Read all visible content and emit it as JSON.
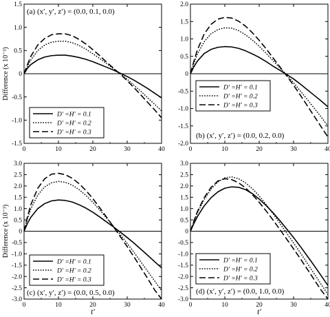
{
  "chart_data": [
    {
      "type": "line",
      "title": "(a) (x′, y′, z′) = (0.0, 0.1, 0.0)",
      "title_position": "top-left",
      "xlabel": "",
      "ylabel": "Difference (x 10⁻³)",
      "xlim": [
        0,
        40
      ],
      "ylim": [
        -1.5,
        1.5
      ],
      "xticks": [
        "0",
        "10",
        "20",
        "30",
        "40"
      ],
      "yticks": [
        "-1.5",
        "-1.0",
        "-0.5",
        "0",
        "0.5",
        "1.0",
        "1.5"
      ],
      "yticks_values": [
        -1.5,
        -1.0,
        -0.5,
        0,
        0.5,
        1.0,
        1.5
      ],
      "grid": false,
      "zero_line": true,
      "legend_position": "bottom-left",
      "series": [
        {
          "name": "D′ =H′ = 0.1",
          "style": "solid",
          "x": [
            0,
            1,
            2,
            4,
            6,
            8,
            10,
            12,
            14,
            16,
            18,
            20,
            22,
            24,
            26,
            28,
            30,
            32,
            34,
            36,
            38,
            40
          ],
          "y": [
            0,
            0.12,
            0.2,
            0.3,
            0.36,
            0.39,
            0.4,
            0.4,
            0.38,
            0.35,
            0.31,
            0.26,
            0.2,
            0.14,
            0.08,
            0.01,
            -0.06,
            -0.14,
            -0.23,
            -0.32,
            -0.42,
            -0.52
          ]
        },
        {
          "name": "D′ =H′ = 0.2",
          "style": "dotted",
          "x": [
            0,
            1,
            2,
            4,
            6,
            8,
            10,
            12,
            14,
            16,
            18,
            20,
            22,
            24,
            26,
            28,
            30,
            32,
            34,
            36,
            38,
            40
          ],
          "y": [
            0,
            0.16,
            0.3,
            0.5,
            0.62,
            0.68,
            0.7,
            0.7,
            0.67,
            0.61,
            0.53,
            0.43,
            0.33,
            0.22,
            0.11,
            0.0,
            -0.12,
            -0.25,
            -0.38,
            -0.52,
            -0.66,
            -0.8
          ]
        },
        {
          "name": "D′ =H′ = 0.3",
          "style": "dashed",
          "x": [
            0,
            1,
            2,
            4,
            6,
            8,
            10,
            12,
            14,
            16,
            18,
            20,
            22,
            24,
            26,
            28,
            30,
            32,
            34,
            36,
            38,
            40
          ],
          "y": [
            0,
            0.2,
            0.38,
            0.62,
            0.76,
            0.84,
            0.86,
            0.86,
            0.82,
            0.74,
            0.64,
            0.52,
            0.39,
            0.25,
            0.12,
            -0.01,
            -0.15,
            -0.3,
            -0.46,
            -0.62,
            -0.78,
            -0.95
          ]
        }
      ]
    },
    {
      "type": "line",
      "title": "(b) (x′, y′, z′) = (0.0, 0.2, 0.0)",
      "title_position": "bottom-right",
      "xlabel": "",
      "ylabel": "",
      "xlim": [
        0,
        40
      ],
      "ylim": [
        -2.0,
        2.0
      ],
      "xticks": [
        "0",
        "10",
        "20",
        "30",
        "40"
      ],
      "yticks": [
        "-2.0",
        "-1.5",
        "-1.0",
        "-0.5",
        "0",
        "0.5",
        "1.0",
        "1.5",
        "2.0"
      ],
      "yticks_values": [
        -2.0,
        -1.5,
        -1.0,
        -0.5,
        0,
        0.5,
        1.0,
        1.5,
        2.0
      ],
      "grid": false,
      "zero_line": true,
      "legend_position": "center-left",
      "series": [
        {
          "name": "D′ =H′ = 0.1",
          "style": "solid",
          "x": [
            0,
            1,
            2,
            4,
            6,
            8,
            10,
            12,
            14,
            16,
            18,
            20,
            22,
            24,
            26,
            28,
            30,
            32,
            34,
            36,
            38,
            40
          ],
          "y": [
            0,
            0.2,
            0.36,
            0.58,
            0.7,
            0.76,
            0.78,
            0.77,
            0.73,
            0.66,
            0.57,
            0.47,
            0.35,
            0.22,
            0.1,
            -0.02,
            -0.15,
            -0.3,
            -0.46,
            -0.62,
            -0.78,
            -0.95
          ]
        },
        {
          "name": "D′ =H′ = 0.2",
          "style": "dotted",
          "x": [
            0,
            1,
            2,
            4,
            6,
            8,
            10,
            12,
            14,
            16,
            18,
            20,
            22,
            24,
            26,
            28,
            30,
            32,
            34,
            36,
            38,
            40
          ],
          "y": [
            0,
            0.3,
            0.56,
            0.92,
            1.15,
            1.27,
            1.32,
            1.31,
            1.24,
            1.12,
            0.97,
            0.79,
            0.59,
            0.38,
            0.17,
            -0.04,
            -0.26,
            -0.5,
            -0.74,
            -0.99,
            -1.24,
            -1.5
          ]
        },
        {
          "name": "D′ =H′ = 0.3",
          "style": "dashed",
          "x": [
            0,
            1,
            2,
            4,
            6,
            8,
            10,
            12,
            14,
            16,
            18,
            20,
            22,
            24,
            26,
            28,
            30,
            32,
            34,
            36,
            38,
            40
          ],
          "y": [
            0,
            0.36,
            0.68,
            1.14,
            1.42,
            1.57,
            1.62,
            1.6,
            1.51,
            1.37,
            1.18,
            0.96,
            0.72,
            0.46,
            0.2,
            -0.06,
            -0.33,
            -0.62,
            -0.92,
            -1.22,
            -1.52,
            -1.82
          ]
        }
      ]
    },
    {
      "type": "line",
      "title": "(c) (x′, y′, z′) = (0.0, 0.5, 0.0)",
      "title_position": "bottom-left",
      "xlabel": "t′",
      "ylabel": "Difference (x 10⁻³)",
      "xlim": [
        0,
        40
      ],
      "ylim": [
        -3.0,
        3.0
      ],
      "xticks": [
        "0",
        "10",
        "20",
        "30",
        "40"
      ],
      "yticks": [
        "-3.0",
        "-2.5",
        "-2.0",
        "-1.5",
        "-1.0",
        "-0.5",
        "0",
        "0.5",
        "1.0",
        "1.5",
        "2.0",
        "2.5",
        "3.0"
      ],
      "yticks_values": [
        -3.0,
        -2.5,
        -2.0,
        -1.5,
        -1.0,
        -0.5,
        0,
        0.5,
        1.0,
        1.5,
        2.0,
        2.5,
        3.0
      ],
      "grid": false,
      "zero_line": true,
      "legend_position": "bottom-left",
      "series": [
        {
          "name": "D′ =H′ = 0.1",
          "style": "solid",
          "x": [
            0,
            1,
            2,
            4,
            6,
            8,
            10,
            12,
            14,
            16,
            18,
            20,
            22,
            24,
            26,
            28,
            30,
            32,
            34,
            36,
            38,
            40
          ],
          "y": [
            0,
            0.35,
            0.62,
            1.0,
            1.22,
            1.34,
            1.38,
            1.36,
            1.29,
            1.17,
            1.02,
            0.84,
            0.63,
            0.41,
            0.19,
            -0.04,
            -0.28,
            -0.53,
            -0.8,
            -1.07,
            -1.35,
            -1.62
          ]
        },
        {
          "name": "D′ =H′ = 0.2",
          "style": "dotted",
          "x": [
            0,
            1,
            2,
            4,
            6,
            8,
            10,
            12,
            14,
            16,
            18,
            20,
            22,
            24,
            26,
            28,
            30,
            32,
            34,
            36,
            38,
            40
          ],
          "y": [
            0,
            0.55,
            1.0,
            1.6,
            1.96,
            2.14,
            2.2,
            2.16,
            2.04,
            1.84,
            1.58,
            1.28,
            0.94,
            0.58,
            0.22,
            -0.15,
            -0.54,
            -0.94,
            -1.36,
            -1.78,
            -2.2,
            -2.62
          ]
        },
        {
          "name": "D′ =H′ = 0.3",
          "style": "dashed",
          "x": [
            0,
            1,
            2,
            4,
            6,
            8,
            10,
            12,
            14,
            16,
            18,
            20,
            22,
            24,
            26,
            28,
            30,
            32,
            34,
            36,
            38,
            40
          ],
          "y": [
            0,
            0.65,
            1.18,
            1.9,
            2.32,
            2.52,
            2.56,
            2.5,
            2.34,
            2.1,
            1.8,
            1.44,
            1.04,
            0.62,
            0.2,
            -0.24,
            -0.68,
            -1.14,
            -1.62,
            -2.1,
            -2.6,
            -3.0
          ]
        }
      ]
    },
    {
      "type": "line",
      "title": "(d) (x′, y′, z′) = (0.0, 1.0, 0.0)",
      "title_position": "bottom-right",
      "xlabel": "t′",
      "ylabel": "",
      "xlim": [
        0,
        40
      ],
      "ylim": [
        -3.0,
        3.0
      ],
      "xticks": [
        "0",
        "10",
        "20",
        "30",
        "40"
      ],
      "yticks": [
        "-3.0",
        "-2.5",
        "-2.0",
        "-1.5",
        "-1.0",
        "-0.5",
        "0",
        "0.5",
        "1.0",
        "1.5",
        "2.0",
        "2.5",
        "3.0"
      ],
      "yticks_values": [
        -3.0,
        -2.5,
        -2.0,
        -1.5,
        -1.0,
        -0.5,
        0,
        0.5,
        1.0,
        1.5,
        2.0,
        2.5,
        3.0
      ],
      "grid": false,
      "zero_line": true,
      "legend_position": "bottom-left",
      "series": [
        {
          "name": "D′ =H′ = 0.1",
          "style": "solid",
          "x": [
            0,
            1,
            2,
            4,
            6,
            8,
            10,
            12,
            14,
            16,
            18,
            20,
            22,
            24,
            26,
            28,
            30,
            32,
            34,
            36,
            38,
            40
          ],
          "y": [
            0,
            0.34,
            0.64,
            1.12,
            1.48,
            1.74,
            1.9,
            1.96,
            1.94,
            1.84,
            1.66,
            1.42,
            1.14,
            0.82,
            0.47,
            0.1,
            -0.28,
            -0.68,
            -1.1,
            -1.52,
            -1.96,
            -2.4
          ]
        },
        {
          "name": "D′ =H′ = 0.2",
          "style": "dotted",
          "x": [
            0,
            1,
            2,
            4,
            6,
            8,
            10,
            12,
            14,
            16,
            18,
            20,
            22,
            24,
            26,
            28,
            30,
            32,
            34,
            36,
            38,
            40
          ],
          "y": [
            0,
            0.42,
            0.8,
            1.4,
            1.86,
            2.18,
            2.36,
            2.4,
            2.32,
            2.14,
            1.88,
            1.56,
            1.18,
            0.78,
            0.35,
            -0.08,
            -0.52,
            -0.96,
            -1.42,
            -1.88,
            -2.34,
            -2.8
          ]
        },
        {
          "name": "D′ =H′ = 0.3",
          "style": "dashed",
          "x": [
            0,
            1,
            2,
            4,
            6,
            8,
            10,
            12,
            14,
            16,
            18,
            20,
            22,
            24,
            26,
            28,
            30,
            32,
            34,
            36,
            38,
            40
          ],
          "y": [
            0,
            0.45,
            0.86,
            1.48,
            1.94,
            2.22,
            2.32,
            2.28,
            2.14,
            1.92,
            1.62,
            1.28,
            0.9,
            0.5,
            0.08,
            -0.35,
            -0.78,
            -1.22,
            -1.68,
            -2.14,
            -2.6,
            -3.0
          ]
        }
      ]
    }
  ]
}
